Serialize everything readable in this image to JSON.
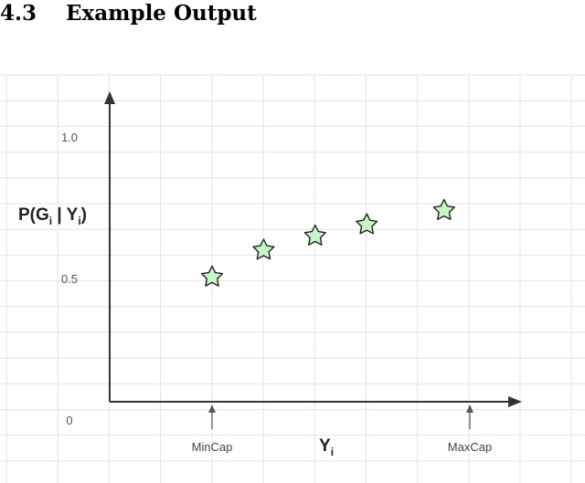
{
  "heading": {
    "number": "4.3",
    "title": "Example Output"
  },
  "chart_data": {
    "type": "scatter",
    "title": "",
    "ylabel": "P(G_i | Y_i)",
    "xlabel": "Y_i",
    "yticks": [
      "1.0",
      "0.5",
      "0"
    ],
    "ytick_values": [
      1.0,
      0.5,
      0
    ],
    "ylim": [
      0,
      1.05
    ],
    "x_annotations": [
      {
        "label": "MinCap",
        "x": 1
      },
      {
        "label": "MaxCap",
        "x": 6
      }
    ],
    "xlim": [
      -1,
      6.9
    ],
    "points": [
      {
        "x": 1,
        "y": 0.505
      },
      {
        "x": 2,
        "y": 0.6
      },
      {
        "x": 3,
        "y": 0.65
      },
      {
        "x": 4,
        "y": 0.69
      },
      {
        "x": 5.5,
        "y": 0.74
      }
    ],
    "marker": "star",
    "marker_color": "#c8f5c8",
    "marker_stroke": "#222222",
    "grid": true,
    "grid_color": "#e3e3e3",
    "axis_color": "#333333"
  }
}
